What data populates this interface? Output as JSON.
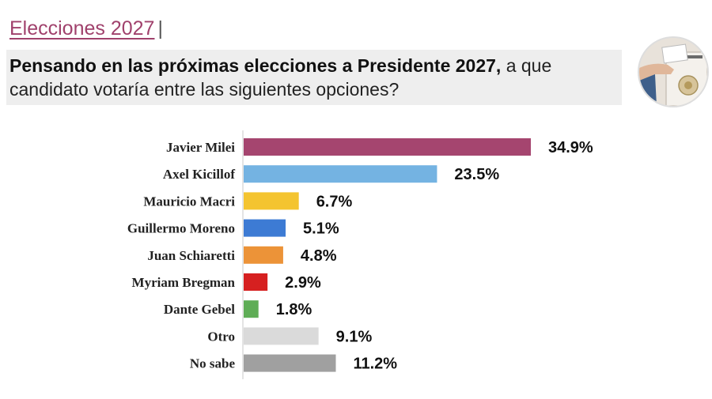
{
  "header": {
    "section_name": "Elecciones 2027",
    "separator": "|",
    "question_bold": "Pensando en las próximas elecciones a Presidente 2027,",
    "question_rest": " a que candidato votaría entre las siguientes opciones?"
  },
  "photo": {
    "icon": "ballot-box-photo"
  },
  "chart_data": {
    "type": "bar",
    "orientation": "horizontal",
    "title": "",
    "xlabel": "",
    "ylabel": "",
    "xlim": [
      0,
      34.9
    ],
    "categories": [
      "Javier Milei",
      "Axel Kicillof",
      "Mauricio Macri",
      "Guillermo Moreno",
      "Juan Schiaretti",
      "Myriam Bregman",
      "Dante Gebel",
      "Otro",
      "No sabe"
    ],
    "values": [
      34.9,
      23.5,
      6.7,
      5.1,
      4.8,
      2.9,
      1.8,
      9.1,
      11.2
    ],
    "value_labels": [
      "34.9%",
      "23.5%",
      "6.7%",
      "5.1%",
      "4.8%",
      "2.9%",
      "1.8%",
      "9.1%",
      "11.2%"
    ],
    "colors": [
      "#a5456f",
      "#74b3e2",
      "#f4c430",
      "#3d7bd4",
      "#ec9338",
      "#d62020",
      "#5fad56",
      "#dadada",
      "#a0a0a0"
    ]
  }
}
